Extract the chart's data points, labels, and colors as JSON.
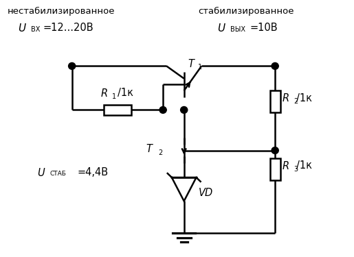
{
  "bg_color": "#ffffff",
  "line_color": "#000000",
  "dot_color": "#000000",
  "line_width": 1.8,
  "fig_width": 5.15,
  "fig_height": 3.75,
  "dpi": 100,
  "xlim": [
    0,
    10
  ],
  "ylim": [
    0,
    7.5
  ],
  "left_top1": "нестабилизированное",
  "left_top2_sub": "ВХ",
  "left_top2_suffix": "=12...20В",
  "right_top1": "стабилизированное",
  "right_top2_sub": "ВЫХ",
  "right_top2_suffix": "=10В",
  "R1_val": "/1к",
  "R2_val": "/1к",
  "R3_val": "/1к",
  "VD": "VD",
  "ustab_sub": "СТАБ",
  "ustab_suffix": "=4,4В",
  "T1_sub": "1",
  "T2_sub": "2",
  "R1_sub": "1",
  "R2_sub": "2",
  "R3_sub": "3"
}
